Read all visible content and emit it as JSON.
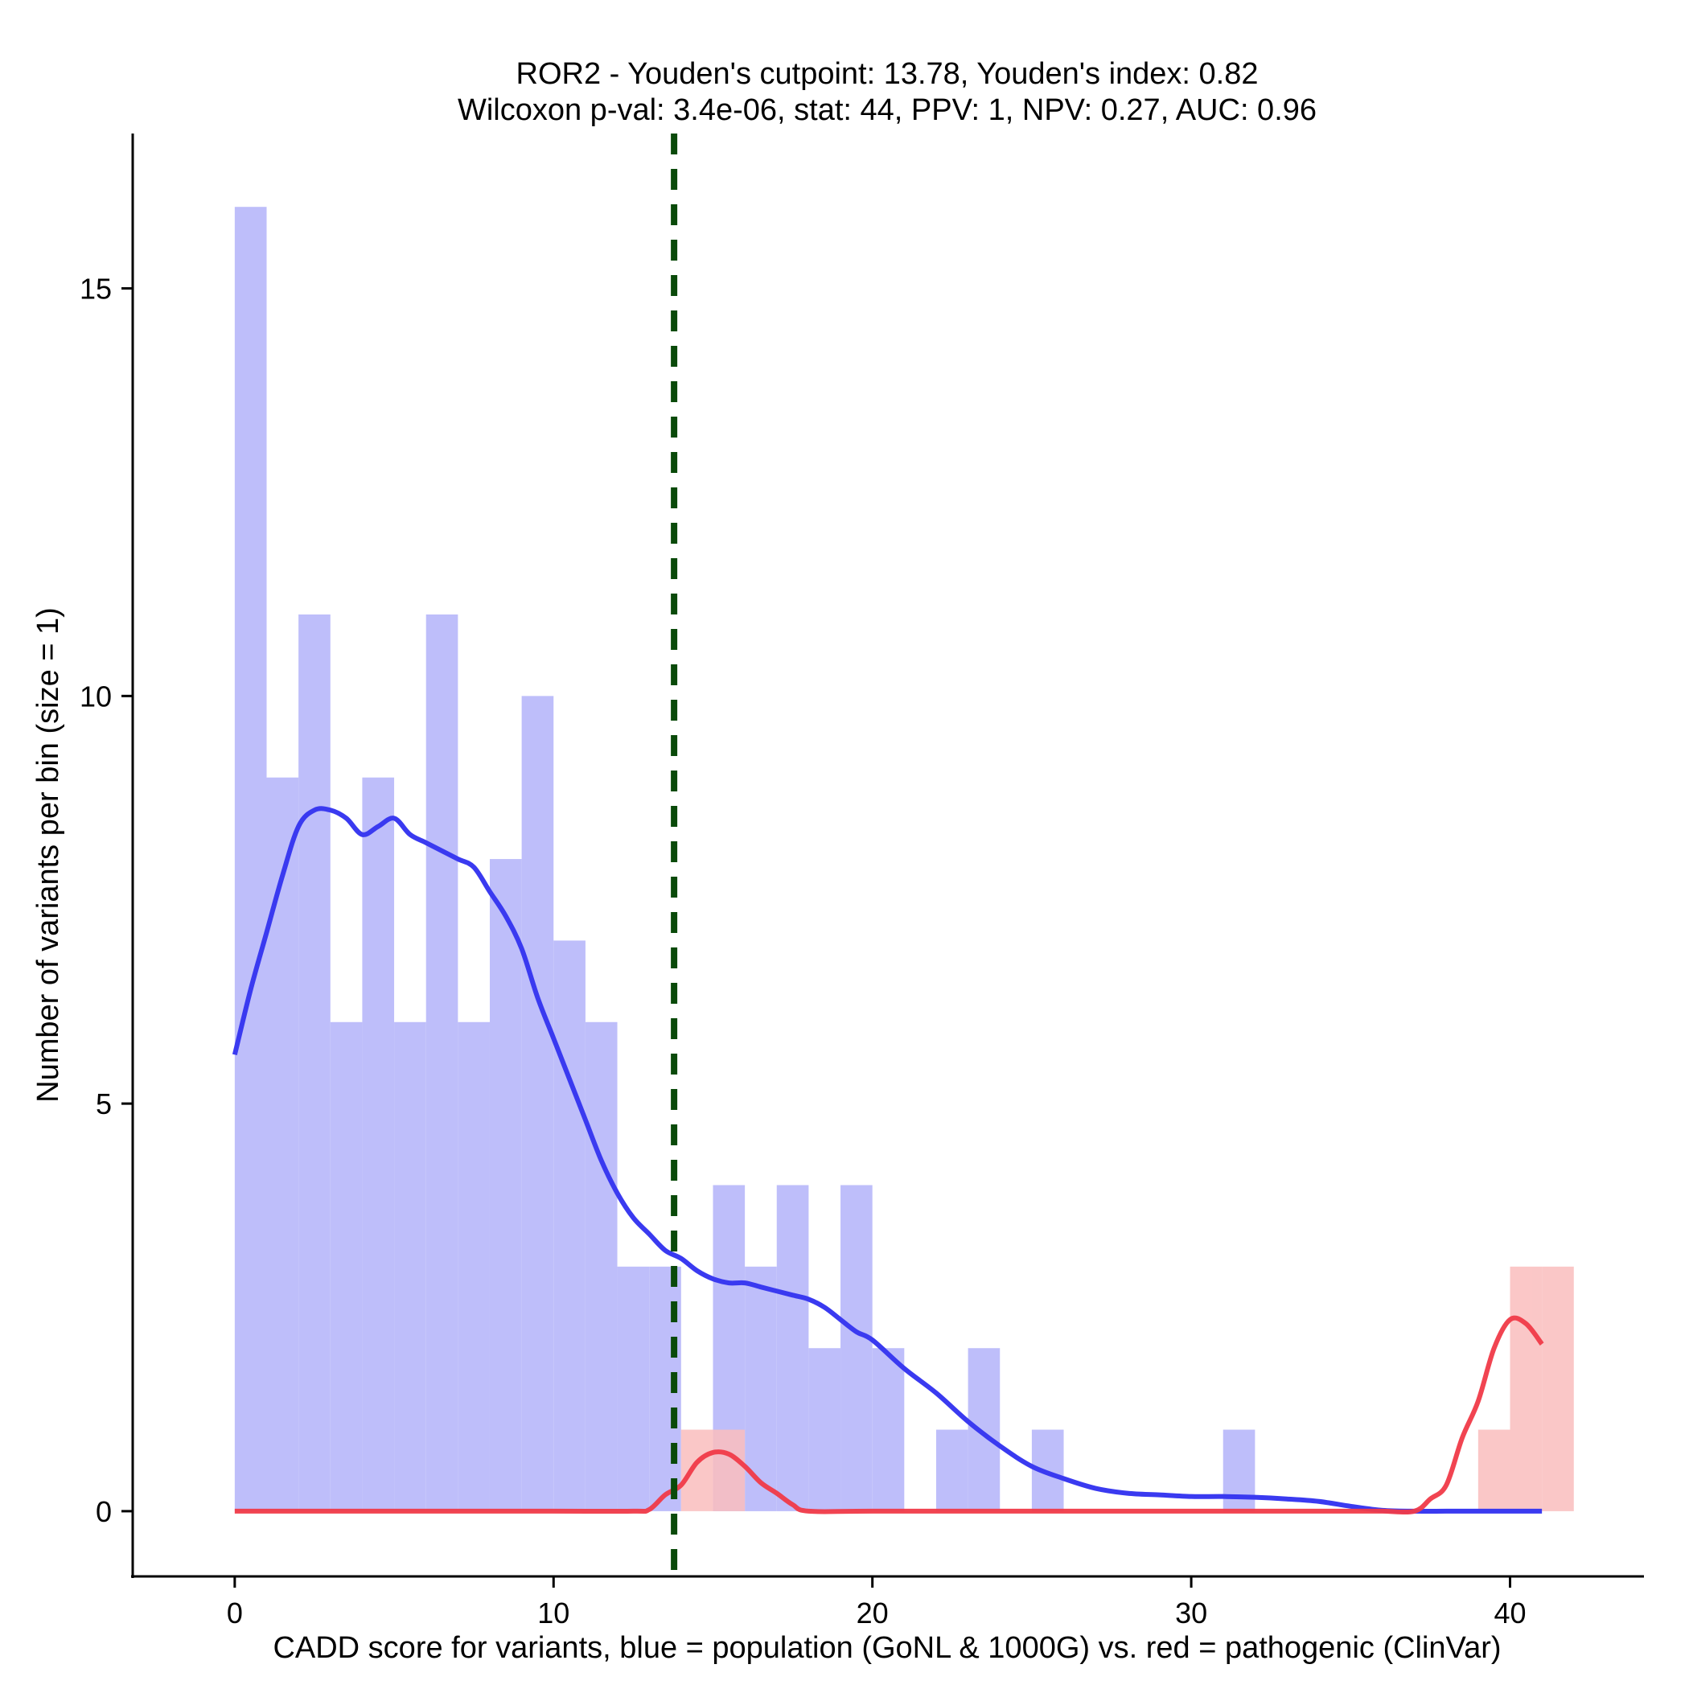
{
  "chart_data": {
    "type": "histogram",
    "title_line1": "ROR2 - Youden's cutpoint: 13.78, Youden's index: 0.82",
    "title_line2": "Wilcoxon p-val: 3.4e-06, stat: 44, PPV: 1, NPV: 0.27, AUC: 0.96",
    "xlabel": "CADD score for variants, blue = population (GoNL & 1000G) vs. red = pathogenic (ClinVar)",
    "ylabel": "Number of variants per bin (size = 1)",
    "xlim": [
      -3.2,
      44.2
    ],
    "ylim": [
      -0.8,
      16.9
    ],
    "x_ticks": [
      0,
      10,
      20,
      30,
      40
    ],
    "x_tick_labels": [
      "0",
      "10",
      "20",
      "30",
      "40"
    ],
    "y_ticks": [
      0,
      5,
      10,
      15
    ],
    "y_tick_labels": [
      "0",
      "5",
      "10",
      "15"
    ],
    "bin_width": 1,
    "cutpoint": 13.78,
    "colors": {
      "population_bar": "#bebefa",
      "pathogenic_bar": "#fabebe",
      "population_density": "#3a3af0",
      "pathogenic_density": "#f03a48",
      "cutpoint_line": "#0a4a0a",
      "axis": "#000000"
    },
    "series": [
      {
        "name": "population (GoNL & 1000G)",
        "bins_start": [
          0,
          1,
          2,
          3,
          4,
          5,
          6,
          7,
          8,
          9,
          10,
          11,
          12,
          13,
          14,
          15,
          16,
          17,
          18,
          19,
          20,
          21,
          22,
          23,
          24,
          25,
          26,
          27,
          28,
          29,
          30,
          31
        ],
        "values": [
          16,
          9,
          11,
          6,
          9,
          6,
          11,
          6,
          8,
          10,
          7,
          6,
          3,
          3,
          0,
          4,
          3,
          4,
          2,
          4,
          2,
          0,
          1,
          2,
          0,
          1,
          0,
          0,
          0,
          0,
          0,
          1
        ]
      },
      {
        "name": "pathogenic (ClinVar)",
        "bins_start": [
          14,
          15,
          39,
          40,
          41
        ],
        "values": [
          1,
          1,
          1,
          3,
          3
        ]
      }
    ],
    "density_population": {
      "x": [
        0,
        0.5,
        1,
        1.5,
        2,
        2.5,
        3,
        3.5,
        4,
        4.5,
        5,
        5.5,
        6,
        6.5,
        7,
        7.5,
        8,
        8.5,
        9,
        9.5,
        10,
        10.5,
        11,
        11.5,
        12,
        12.5,
        13,
        13.5,
        14,
        14.5,
        15,
        15.5,
        16,
        16.5,
        17,
        17.5,
        18,
        18.5,
        19,
        19.5,
        20,
        21,
        22,
        23,
        24,
        25,
        26,
        27,
        28,
        29,
        30,
        31,
        32,
        33,
        34,
        35,
        36,
        37,
        38,
        39,
        40,
        41
      ],
      "y": [
        5.6,
        6.4,
        7.1,
        7.8,
        8.4,
        8.6,
        8.6,
        8.5,
        8.3,
        8.4,
        8.5,
        8.3,
        8.2,
        8.1,
        8.0,
        7.9,
        7.6,
        7.3,
        6.9,
        6.3,
        5.8,
        5.3,
        4.8,
        4.3,
        3.9,
        3.6,
        3.4,
        3.2,
        3.1,
        2.95,
        2.85,
        2.8,
        2.8,
        2.75,
        2.7,
        2.65,
        2.6,
        2.5,
        2.35,
        2.2,
        2.1,
        1.75,
        1.45,
        1.1,
        0.8,
        0.55,
        0.4,
        0.28,
        0.22,
        0.2,
        0.18,
        0.18,
        0.17,
        0.15,
        0.12,
        0.06,
        0.01,
        0.0,
        0.0,
        0.0,
        0.0,
        0.0
      ]
    },
    "density_pathogenic": {
      "x": [
        0,
        5,
        10,
        12.5,
        13,
        13.5,
        14,
        14.5,
        15,
        15.5,
        16,
        16.5,
        17,
        17.5,
        18,
        20,
        25,
        30,
        35,
        36,
        37,
        37.5,
        38,
        38.5,
        39,
        39.5,
        40,
        40.5,
        41
      ],
      "y": [
        0,
        0,
        0,
        0,
        0.02,
        0.2,
        0.32,
        0.6,
        0.72,
        0.7,
        0.55,
        0.35,
        0.22,
        0.08,
        0,
        0,
        0,
        0,
        0,
        0,
        0,
        0.15,
        0.32,
        0.9,
        1.35,
        2.0,
        2.35,
        2.3,
        2.05
      ]
    }
  }
}
